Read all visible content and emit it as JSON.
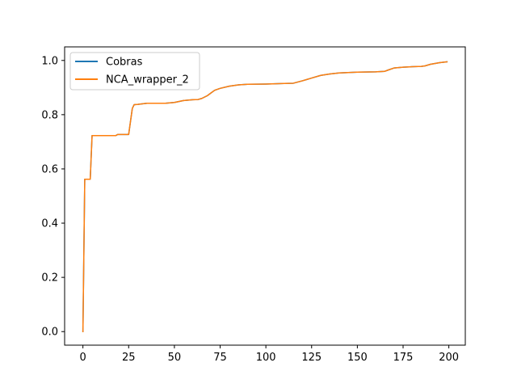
{
  "chart_data": {
    "type": "line",
    "title": "",
    "xlabel": "",
    "ylabel": "",
    "xlim": [
      -10,
      209
    ],
    "ylim": [
      -0.05,
      1.05
    ],
    "xticks": [
      0,
      25,
      50,
      75,
      100,
      125,
      150,
      175,
      200
    ],
    "xtick_labels": [
      "0",
      "25",
      "50",
      "75",
      "100",
      "125",
      "150",
      "175",
      "200"
    ],
    "yticks": [
      0.0,
      0.2,
      0.4,
      0.6,
      0.8,
      1.0
    ],
    "ytick_labels": [
      "0.0",
      "0.2",
      "0.4",
      "0.6",
      "0.8",
      "1.0"
    ],
    "grid": false,
    "legend_position": "upper-left",
    "x": [
      0,
      1,
      4,
      5,
      10,
      18,
      19,
      25,
      27,
      28,
      30,
      35,
      45,
      50,
      55,
      60,
      63,
      65,
      68,
      70,
      72,
      75,
      80,
      85,
      90,
      100,
      110,
      115,
      120,
      125,
      130,
      135,
      140,
      150,
      160,
      165,
      167,
      170,
      175,
      180,
      185,
      187,
      190,
      195,
      199
    ],
    "series": [
      {
        "name": "Cobras",
        "color": "#1f77b4",
        "values": [
          0.0,
          0.562,
          0.562,
          0.723,
          0.723,
          0.723,
          0.727,
          0.727,
          0.823,
          0.837,
          0.838,
          0.842,
          0.842,
          0.845,
          0.852,
          0.855,
          0.856,
          0.86,
          0.87,
          0.88,
          0.89,
          0.897,
          0.905,
          0.91,
          0.912,
          0.913,
          0.915,
          0.916,
          0.925,
          0.935,
          0.945,
          0.95,
          0.954,
          0.957,
          0.958,
          0.96,
          0.965,
          0.972,
          0.975,
          0.977,
          0.978,
          0.98,
          0.986,
          0.992,
          0.995
        ]
      },
      {
        "name": "NCA_wrapper_2",
        "color": "#ff7f0e",
        "values": [
          0.0,
          0.562,
          0.562,
          0.723,
          0.723,
          0.723,
          0.727,
          0.727,
          0.823,
          0.837,
          0.838,
          0.842,
          0.842,
          0.845,
          0.852,
          0.855,
          0.856,
          0.86,
          0.87,
          0.88,
          0.89,
          0.897,
          0.905,
          0.91,
          0.912,
          0.913,
          0.915,
          0.916,
          0.925,
          0.935,
          0.945,
          0.95,
          0.954,
          0.957,
          0.958,
          0.96,
          0.965,
          0.972,
          0.975,
          0.977,
          0.978,
          0.98,
          0.986,
          0.992,
          0.995
        ]
      }
    ]
  }
}
